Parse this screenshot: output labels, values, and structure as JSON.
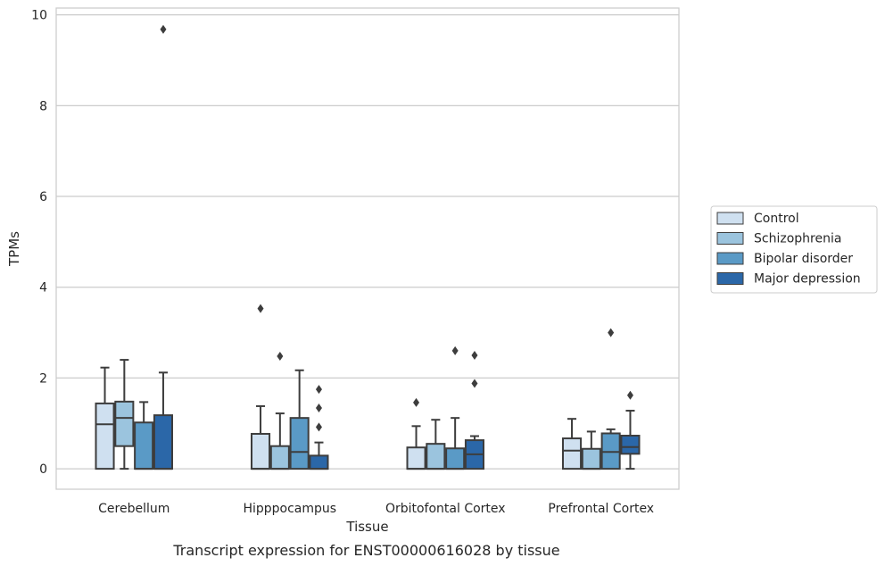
{
  "chart_data": {
    "type": "boxplot",
    "title": "",
    "caption": "Transcript expression for ENST00000616028 by tissue",
    "xlabel": "Tissue",
    "ylabel": "TPMs",
    "ylim": [
      -0.45,
      10.15
    ],
    "yticks": [
      0,
      2,
      4,
      6,
      8,
      10
    ],
    "grid": true,
    "legend_position": "right",
    "categories": [
      "Cerebellum",
      "Hipppocampus",
      "Orbitofontal Cortex",
      "Prefrontal Cortex"
    ],
    "series": [
      {
        "name": "Control",
        "color": "#cfe0f0",
        "boxes": [
          {
            "q1": 0.0,
            "median": 0.98,
            "q3": 1.44,
            "whisker_low": 0.0,
            "whisker_high": 2.23,
            "outliers": []
          },
          {
            "q1": 0.0,
            "median": 0.0,
            "q3": 0.77,
            "whisker_low": 0.0,
            "whisker_high": 1.38,
            "outliers": [
              3.53
            ]
          },
          {
            "q1": 0.0,
            "median": 0.0,
            "q3": 0.47,
            "whisker_low": 0.0,
            "whisker_high": 0.94,
            "outliers": [
              1.46
            ]
          },
          {
            "q1": 0.0,
            "median": 0.4,
            "q3": 0.67,
            "whisker_low": 0.0,
            "whisker_high": 1.1,
            "outliers": []
          }
        ]
      },
      {
        "name": "Schizophrenia",
        "color": "#9bc4de",
        "boxes": [
          {
            "q1": 0.5,
            "median": 1.12,
            "q3": 1.48,
            "whisker_low": 0.0,
            "whisker_high": 2.4,
            "outliers": []
          },
          {
            "q1": 0.0,
            "median": 0.0,
            "q3": 0.5,
            "whisker_low": 0.0,
            "whisker_high": 1.22,
            "outliers": [
              2.48
            ]
          },
          {
            "q1": 0.0,
            "median": 0.0,
            "q3": 0.55,
            "whisker_low": 0.0,
            "whisker_high": 1.08,
            "outliers": []
          },
          {
            "q1": 0.0,
            "median": 0.0,
            "q3": 0.44,
            "whisker_low": 0.0,
            "whisker_high": 0.82,
            "outliers": []
          }
        ]
      },
      {
        "name": "Bipolar disorder",
        "color": "#5a9ac6",
        "boxes": [
          {
            "q1": 0.0,
            "median": 0.0,
            "q3": 1.02,
            "whisker_low": 0.0,
            "whisker_high": 1.47,
            "outliers": []
          },
          {
            "q1": 0.0,
            "median": 0.37,
            "q3": 1.12,
            "whisker_low": 0.0,
            "whisker_high": 2.17,
            "outliers": []
          },
          {
            "q1": 0.0,
            "median": 0.0,
            "q3": 0.45,
            "whisker_low": 0.0,
            "whisker_high": 1.12,
            "outliers": [
              2.6
            ]
          },
          {
            "q1": 0.0,
            "median": 0.37,
            "q3": 0.78,
            "whisker_low": 0.0,
            "whisker_high": 0.87,
            "outliers": [
              3.0
            ]
          }
        ]
      },
      {
        "name": "Major depression",
        "color": "#2b67a8",
        "boxes": [
          {
            "q1": 0.0,
            "median": 0.0,
            "q3": 1.18,
            "whisker_low": 0.0,
            "whisker_high": 2.12,
            "outliers": [
              9.68
            ]
          },
          {
            "q1": 0.0,
            "median": 0.0,
            "q3": 0.29,
            "whisker_low": 0.0,
            "whisker_high": 0.58,
            "outliers": [
              0.92,
              1.34,
              1.75
            ]
          },
          {
            "q1": 0.0,
            "median": 0.32,
            "q3": 0.63,
            "whisker_low": 0.0,
            "whisker_high": 0.72,
            "outliers": [
              1.88,
              2.5
            ]
          },
          {
            "q1": 0.33,
            "median": 0.48,
            "q3": 0.73,
            "whisker_low": 0.0,
            "whisker_high": 1.28,
            "outliers": [
              1.62
            ]
          }
        ]
      }
    ]
  }
}
